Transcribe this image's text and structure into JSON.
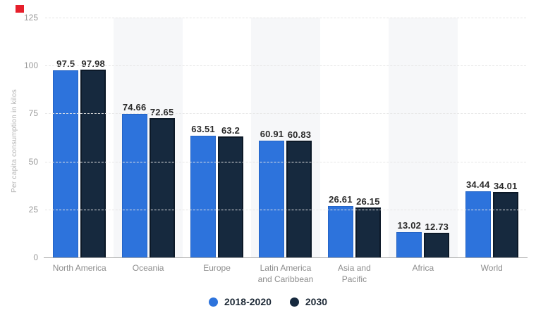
{
  "red_marker": {
    "color": "#e61f2b"
  },
  "chart_data": {
    "type": "bar",
    "title": "",
    "ylabel": "Per capita consumption in kilos",
    "xlabel": "",
    "ylim": [
      0,
      125
    ],
    "yticks": [
      0,
      25,
      50,
      75,
      100,
      125
    ],
    "grid": true,
    "legend_position": "bottom",
    "stripe_color": "#f6f7f9",
    "striped_categories": [
      1,
      3,
      5
    ],
    "categories": [
      "North America",
      "Oceania",
      "Europe",
      "Latin America\nand Caribbean",
      "Asia and\nPacific",
      "Africa",
      "World"
    ],
    "series": [
      {
        "name": "2018-2020",
        "color": "#2d73dc",
        "values": [
          97.5,
          74.66,
          63.51,
          60.91,
          26.61,
          13.02,
          34.44
        ]
      },
      {
        "name": "2030",
        "color": "#16293e",
        "values": [
          97.98,
          72.65,
          63.2,
          60.83,
          26.15,
          12.73,
          34.01
        ]
      }
    ]
  }
}
